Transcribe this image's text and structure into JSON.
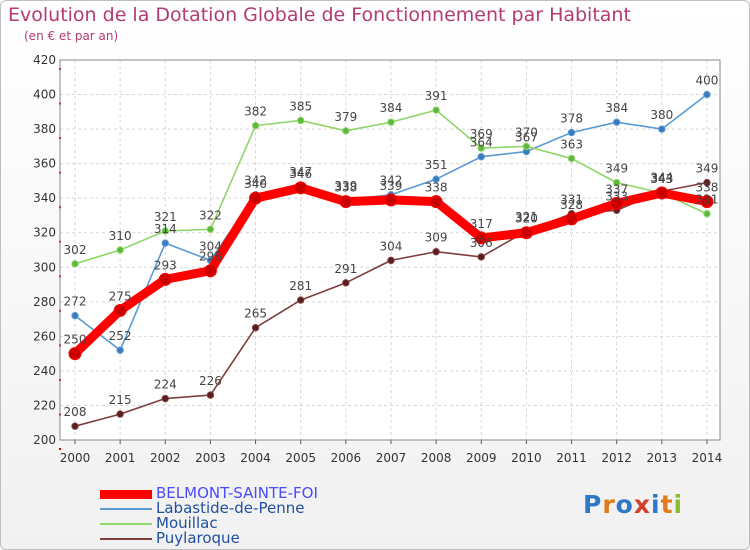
{
  "title": "Evolution de la Dotation Globale de Fonctionnement par Habitant",
  "subtitle": "(en € et par an)",
  "logo": {
    "text": "Proxiti",
    "letters": [
      "P",
      "r",
      "o",
      "x",
      "i",
      "t",
      "i"
    ],
    "colors": [
      "#2e78c8",
      "#e07a1a",
      "#2e78c8",
      "#d43f2d",
      "#2e78c8",
      "#e07a1a",
      "#8bbf2a"
    ]
  },
  "chart_data": {
    "type": "line",
    "title": "Evolution de la Dotation Globale de Fonctionnement par Habitant",
    "subtitle": "(en € et par an)",
    "xlabel": "",
    "ylabel": "",
    "ylim": [
      200,
      420
    ],
    "yticks": [
      200,
      220,
      240,
      260,
      280,
      300,
      320,
      340,
      360,
      380,
      400,
      420
    ],
    "grid": true,
    "legend": "bottom-left",
    "categories": [
      "2000",
      "2001",
      "2002",
      "2003",
      "2004",
      "2005",
      "2006",
      "2007",
      "2008",
      "2009",
      "2010",
      "2011",
      "2012",
      "2013",
      "2014"
    ],
    "series": [
      {
        "name": "BELMONT-SAINTE-FOI",
        "color": "#ff0000",
        "marker": "#cc0000",
        "bold": true,
        "values": [
          250,
          275,
          293,
          298,
          340,
          346,
          338,
          339,
          338,
          317,
          320,
          328,
          337,
          343,
          338
        ]
      },
      {
        "name": "Labastide-de-Penne",
        "color": "#5b9bd5",
        "marker": "#3a7abf",
        "bold": false,
        "values": [
          272,
          252,
          314,
          304,
          342,
          347,
          339,
          342,
          351,
          364,
          367,
          378,
          384,
          380,
          400
        ]
      },
      {
        "name": "Mouillac",
        "color": "#8fd66a",
        "marker": "#5cb83a",
        "bold": false,
        "values": [
          302,
          310,
          321,
          322,
          382,
          385,
          379,
          384,
          391,
          369,
          370,
          363,
          349,
          343,
          331
        ]
      },
      {
        "name": "Puylaroque",
        "color": "#7f3f3f",
        "marker": "#5a1e1e",
        "bold": false,
        "values": [
          208,
          215,
          224,
          226,
          265,
          281,
          291,
          304,
          309,
          306,
          321,
          331,
          333,
          344,
          349
        ]
      }
    ]
  }
}
